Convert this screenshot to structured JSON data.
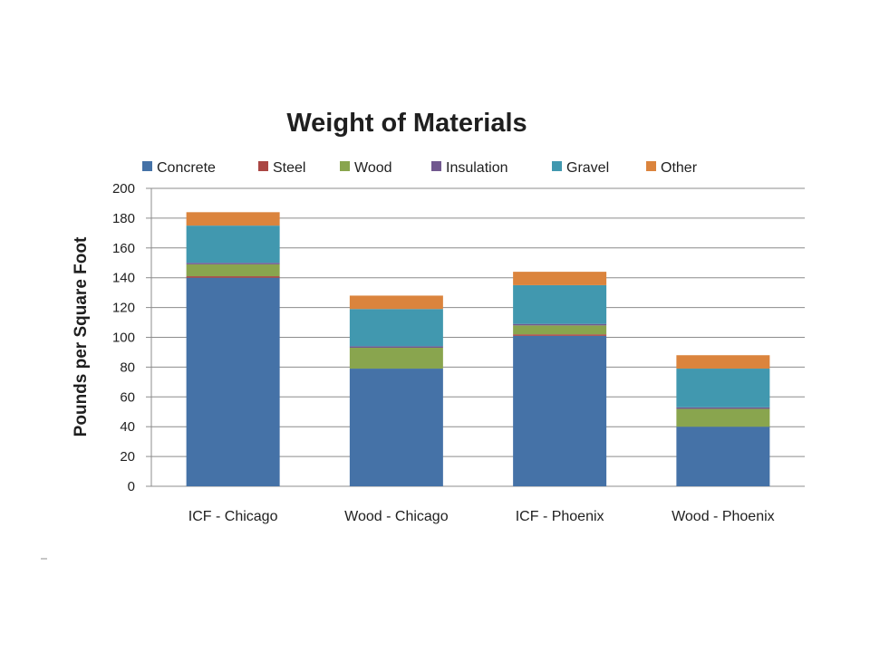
{
  "chart_data": {
    "type": "bar",
    "stacked": true,
    "title": "Weight of Materials",
    "xlabel": "",
    "ylabel": "Pounds per Square Foot",
    "ylim": [
      0,
      200
    ],
    "yticks": [
      0,
      20,
      40,
      60,
      80,
      100,
      120,
      140,
      160,
      180,
      200
    ],
    "grid": true,
    "legend_position": "top",
    "categories": [
      "ICF - Chicago",
      "Wood - Chicago",
      "ICF - Phoenix",
      "Wood - Phoenix"
    ],
    "series": [
      {
        "name": "Concrete",
        "color": "#4572a7",
        "values": [
          140,
          79,
          101,
          40
        ]
      },
      {
        "name": "Steel",
        "color": "#aa4643",
        "values": [
          1,
          0,
          1,
          0
        ]
      },
      {
        "name": "Wood",
        "color": "#89a54e",
        "values": [
          8,
          14,
          6,
          12
        ]
      },
      {
        "name": "Insulation",
        "color": "#71588f",
        "values": [
          1,
          1,
          1,
          1
        ]
      },
      {
        "name": "Gravel",
        "color": "#4198af",
        "values": [
          25,
          25,
          26,
          26
        ]
      },
      {
        "name": "Other",
        "color": "#db843d",
        "values": [
          9,
          9,
          9,
          9
        ]
      }
    ]
  }
}
